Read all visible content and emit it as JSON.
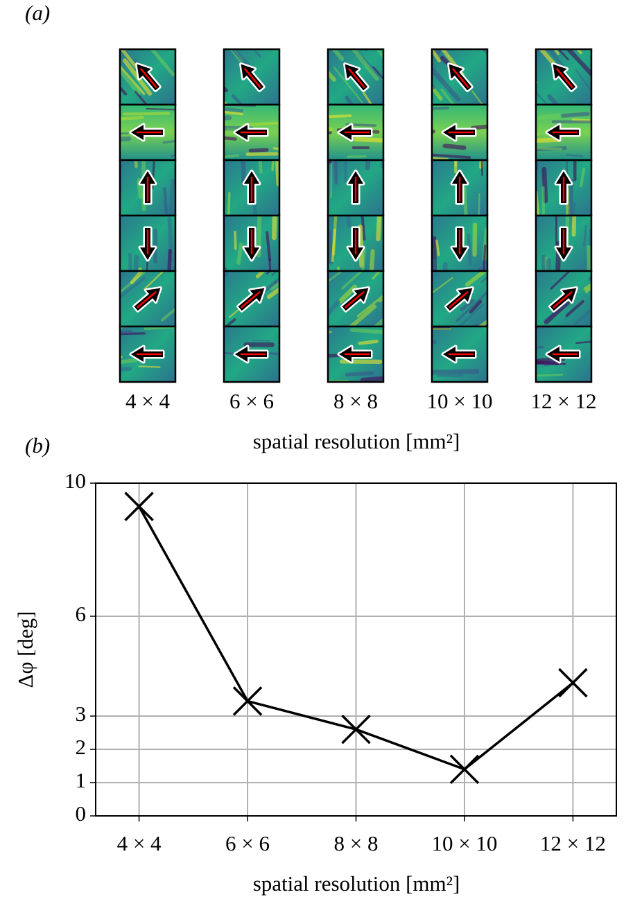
{
  "panel_labels": [
    "(a)",
    "(b)"
  ],
  "chart_data": {
    "type": "line",
    "categories": [
      "4 × 4",
      "6 × 6",
      "8 × 8",
      "10 × 10",
      "12 × 12"
    ],
    "values": [
      9.3,
      3.45,
      2.6,
      1.4,
      4.0
    ],
    "color": "#000000",
    "x_label": "spatial resolution [mm²]",
    "y_label": "Δφ [deg]",
    "ylim": [
      0,
      10
    ],
    "yticks": [
      0,
      1,
      2,
      3,
      6,
      10
    ],
    "grid": true,
    "marker": "x"
  }
}
